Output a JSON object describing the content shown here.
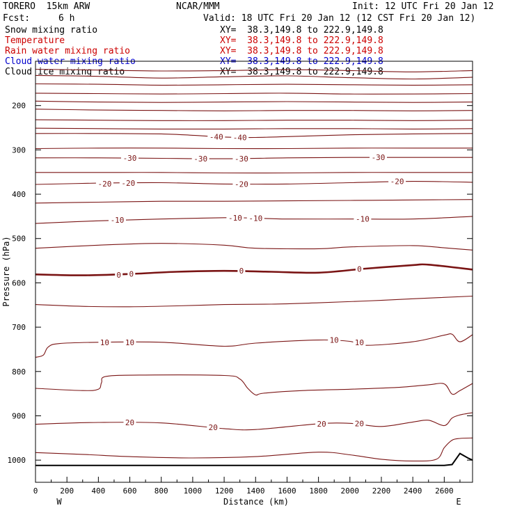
{
  "header": {
    "model": "TORERO  15km ARW",
    "org": "NCAR/MMM",
    "init": "Init: 12 UTC Fri 20 Jan 12",
    "fcst_label": "Fcst:",
    "fcst_value": "6 h",
    "valid": "Valid: 18 UTC Fri 20 Jan 12 (12 CST Fri 20 Jan 12)"
  },
  "fields": [
    {
      "name": "Snow mixing ratio",
      "xy": "XY=  38.3,149.8 to 222.9,149.8",
      "color": "#000000"
    },
    {
      "name": "Temperature",
      "xy": "XY=  38.3,149.8 to 222.9,149.8",
      "color": "#cc0000"
    },
    {
      "name": "Rain water mixing ratio",
      "xy": "XY=  38.3,149.8 to 222.9,149.8",
      "color": "#cc0000"
    },
    {
      "name": "Cloud water mixing ratio",
      "xy": "XY=  38.3,149.8 to 222.9,149.8",
      "color": "#0000cc"
    },
    {
      "name": "Cloud ice mixing ratio",
      "xy": "XY=  38.3,149.8 to 222.9,149.8",
      "color": "#000000"
    }
  ],
  "chart_data": {
    "type": "line",
    "xlabel": "Distance (km)",
    "ylabel": "Pressure (hPa)",
    "xlim": [
      0,
      2780
    ],
    "ylim": [
      1050,
      100
    ],
    "x_ticks": [
      0,
      200,
      400,
      600,
      800,
      1000,
      1200,
      1400,
      1600,
      1800,
      2000,
      2200,
      2400,
      2600
    ],
    "y_ticks": [
      200,
      300,
      400,
      500,
      600,
      700,
      800,
      900,
      1000
    ],
    "x_end_labels": {
      "left": "W",
      "right": "E"
    },
    "contour_color": "#7a1414",
    "zero_contour_color": "#7a1414",
    "terrain_color": "#000000",
    "isotherms": [
      {
        "level": -60,
        "x": [
          0,
          400,
          800,
          1200,
          1600,
          2000,
          2400,
          2780
        ],
        "p": [
          118,
          120,
          122,
          121,
          119,
          121,
          124,
          121
        ]
      },
      {
        "level": -58,
        "x": [
          0,
          400,
          800,
          1200,
          1600,
          2000,
          2400,
          2780
        ],
        "p": [
          132,
          134,
          138,
          135,
          133,
          137,
          140,
          136
        ]
      },
      {
        "level": -56,
        "x": [
          0,
          400,
          800,
          1200,
          1600,
          2000,
          2400,
          2780
        ],
        "p": [
          151,
          152,
          154,
          153,
          152,
          153,
          154,
          153
        ]
      },
      {
        "level": -54,
        "x": [
          0,
          400,
          800,
          1200,
          1600,
          2000,
          2400,
          2780
        ],
        "p": [
          172,
          173,
          174,
          173,
          172,
          174,
          174,
          173
        ]
      },
      {
        "level": -52,
        "x": [
          0,
          400,
          800,
          1200,
          1600,
          2000,
          2400,
          2780
        ],
        "p": [
          190,
          192,
          193,
          192,
          191,
          192,
          193,
          192
        ]
      },
      {
        "level": -50,
        "x": [
          0,
          400,
          800,
          1200,
          1600,
          2000,
          2400,
          2780
        ],
        "p": [
          208,
          210,
          211,
          212,
          211,
          211,
          212,
          211
        ]
      },
      {
        "level": -45,
        "x": [
          0,
          400,
          800,
          1200,
          1600,
          2000,
          2400,
          2780
        ],
        "p": [
          232,
          233,
          234,
          234,
          233,
          233,
          234,
          233
        ]
      },
      {
        "level": -42,
        "x": [
          0,
          400,
          800,
          1200,
          1600,
          2000,
          2400,
          2780
        ],
        "p": [
          251,
          252,
          253,
          253,
          252,
          252,
          253,
          252
        ]
      },
      {
        "level": -40,
        "x": [
          0,
          400,
          800,
          1000,
          1200,
          1400,
          1600,
          2000,
          2400,
          2780
        ],
        "p": [
          263,
          263,
          264,
          267,
          271,
          272,
          270,
          266,
          264,
          263
        ]
      },
      {
        "level": -35,
        "x": [
          0,
          400,
          800,
          1200,
          1600,
          2000,
          2400,
          2780
        ],
        "p": [
          297,
          296,
          296,
          297,
          297,
          296,
          296,
          296
        ]
      },
      {
        "level": -30,
        "x": [
          0,
          400,
          800,
          1200,
          1600,
          2000,
          2400,
          2780
        ],
        "p": [
          318,
          318,
          319,
          320,
          318,
          317,
          317,
          317
        ]
      },
      {
        "level": -25,
        "x": [
          0,
          400,
          800,
          1200,
          1600,
          2000,
          2400,
          2780
        ],
        "p": [
          351,
          351,
          351,
          352,
          352,
          351,
          351,
          351
        ]
      },
      {
        "level": -20,
        "x": [
          0,
          400,
          800,
          1200,
          1600,
          2000,
          2400,
          2780
        ],
        "p": [
          378,
          375,
          374,
          377,
          377,
          374,
          371,
          373
        ]
      },
      {
        "level": -15,
        "x": [
          0,
          400,
          800,
          1200,
          1600,
          2000,
          2400,
          2780
        ],
        "p": [
          420,
          418,
          416,
          416,
          415,
          414,
          413,
          412
        ]
      },
      {
        "level": -10,
        "x": [
          0,
          400,
          800,
          1200,
          1400,
          1600,
          2000,
          2400,
          2780
        ],
        "p": [
          466,
          460,
          456,
          453,
          454,
          456,
          456,
          456,
          450
        ]
      },
      {
        "level": -5,
        "x": [
          0,
          400,
          800,
          1200,
          1400,
          1800,
          2000,
          2400,
          2600,
          2780
        ],
        "p": [
          522,
          515,
          511,
          515,
          522,
          523,
          519,
          516,
          521,
          526
        ]
      },
      {
        "level": 0,
        "x": [
          0,
          300,
          600,
          900,
          1200,
          1500,
          1800,
          2100,
          2400,
          2500,
          2780
        ],
        "p": [
          581,
          583,
          580,
          575,
          573,
          575,
          577,
          568,
          560,
          559,
          570
        ]
      },
      {
        "level": 5,
        "x": [
          0,
          300,
          600,
          900,
          1200,
          1500,
          1800,
          2100,
          2400,
          2780
        ],
        "p": [
          649,
          653,
          654,
          652,
          649,
          648,
          645,
          641,
          636,
          630
        ]
      },
      {
        "level": 10,
        "x": [
          0,
          50,
          80,
          150,
          400,
          800,
          1200,
          1400,
          1800,
          2000,
          2100,
          2400,
          2600,
          2650,
          2700,
          2780
        ],
        "p": [
          768,
          763,
          745,
          737,
          734,
          734,
          743,
          736,
          729,
          732,
          741,
          733,
          718,
          716,
          733,
          717
        ]
      },
      {
        "level": 15,
        "x": [
          0,
          300,
          400,
          420,
          450,
          700,
          1200,
          1300,
          1350,
          1400,
          1450,
          1700,
          2000,
          2300,
          2500,
          2600,
          2650,
          2700,
          2780
        ],
        "p": [
          838,
          843,
          840,
          825,
          811,
          808,
          809,
          817,
          838,
          853,
          849,
          843,
          840,
          836,
          830,
          828,
          851,
          843,
          827
        ]
      },
      {
        "level": 20,
        "x": [
          0,
          400,
          800,
          1200,
          1400,
          1800,
          2000,
          2200,
          2400,
          2500,
          2600,
          2650,
          2700,
          2780
        ],
        "p": [
          919,
          915,
          916,
          929,
          931,
          918,
          917,
          924,
          914,
          910,
          922,
          905,
          898,
          893
        ]
      },
      {
        "level": 25,
        "x": [
          0,
          300,
          600,
          1000,
          1400,
          1800,
          2000,
          2200,
          2400,
          2550,
          2600,
          2650,
          2700,
          2780
        ],
        "p": [
          983,
          987,
          992,
          995,
          992,
          982,
          988,
          998,
          1002,
          998,
          972,
          955,
          951,
          950
        ]
      }
    ],
    "contour_labels": [
      {
        "text": "-40",
        "x": 1150,
        "p": 270
      },
      {
        "text": "-40",
        "x": 1300,
        "p": 272
      },
      {
        "text": "-30",
        "x": 600,
        "p": 318
      },
      {
        "text": "-30",
        "x": 1050,
        "p": 320
      },
      {
        "text": "-30",
        "x": 1310,
        "p": 320
      },
      {
        "text": "-30",
        "x": 2180,
        "p": 317
      },
      {
        "text": "-20",
        "x": 440,
        "p": 376
      },
      {
        "text": "-20",
        "x": 590,
        "p": 375
      },
      {
        "text": "-20",
        "x": 1310,
        "p": 377
      },
      {
        "text": "-20",
        "x": 2300,
        "p": 371
      },
      {
        "text": "-10",
        "x": 520,
        "p": 458
      },
      {
        "text": "-10",
        "x": 1270,
        "p": 453
      },
      {
        "text": "-10",
        "x": 1400,
        "p": 454
      },
      {
        "text": "-10",
        "x": 2080,
        "p": 456
      },
      {
        "text": "0",
        "x": 530,
        "p": 582
      },
      {
        "text": "0",
        "x": 610,
        "p": 580
      },
      {
        "text": "0",
        "x": 1310,
        "p": 573
      },
      {
        "text": "0",
        "x": 2060,
        "p": 569
      },
      {
        "text": "10",
        "x": 440,
        "p": 734
      },
      {
        "text": "10",
        "x": 600,
        "p": 734
      },
      {
        "text": "10",
        "x": 1900,
        "p": 729
      },
      {
        "text": "10",
        "x": 2060,
        "p": 734
      },
      {
        "text": "20",
        "x": 600,
        "p": 915
      },
      {
        "text": "20",
        "x": 1130,
        "p": 926
      },
      {
        "text": "20",
        "x": 1820,
        "p": 918
      },
      {
        "text": "20",
        "x": 2060,
        "p": 917
      }
    ],
    "terrain": {
      "x": [
        0,
        2600,
        2650,
        2700,
        2750,
        2780
      ],
      "p": [
        1012,
        1012,
        1010,
        985,
        995,
        1000
      ]
    }
  }
}
